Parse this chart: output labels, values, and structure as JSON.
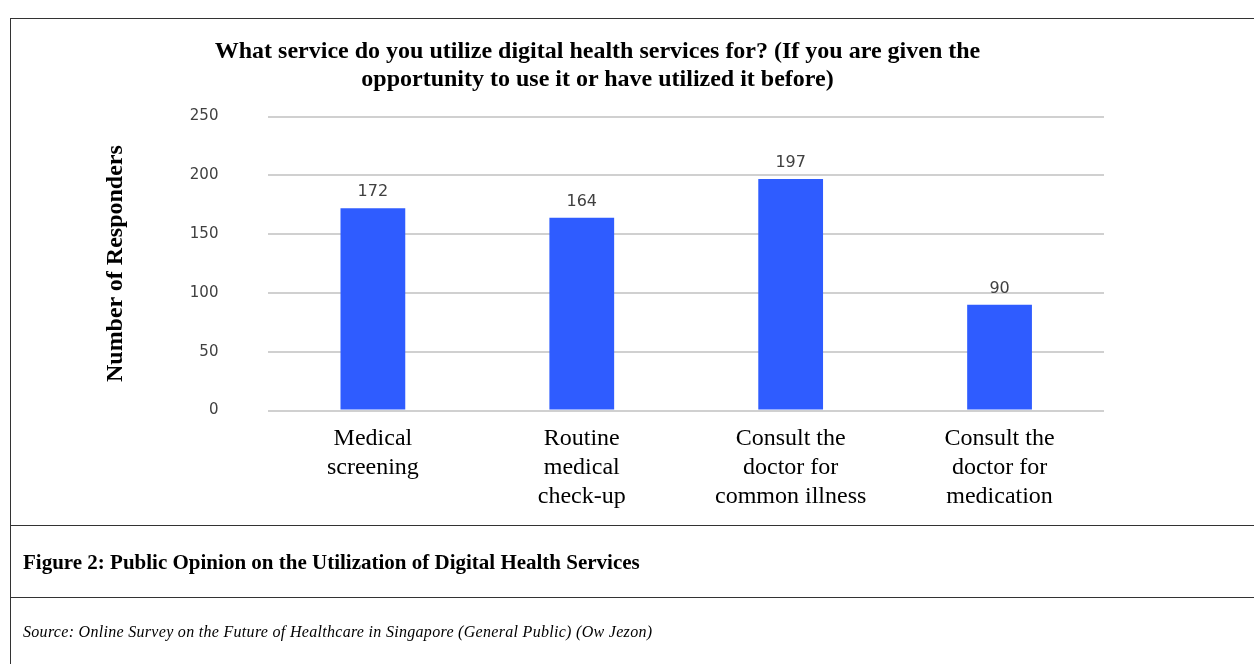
{
  "chart_data": {
    "type": "bar",
    "title": "What service do you utilize digital health services for? (If you are given the opportunity to use it or have utilized it before)",
    "ylabel": "Number of Responders",
    "categories": [
      "Medical screening",
      "Routine medical check-up",
      "Consult the doctor for common illness",
      "Consult the doctor for medication"
    ],
    "values": [
      172,
      164,
      197,
      90
    ],
    "color": "#2f5cff",
    "ylim": [
      0,
      250
    ],
    "yticks": [
      0,
      50,
      100,
      150,
      200,
      250
    ],
    "grid": "y",
    "data_labels": true,
    "legend": false,
    "annotations": [
      "Figure 2: Public Opinion on the Utilization of Digital Health Services",
      "Source: Online Survey on the Future of Healthcare in Singapore (General Public) (Ow Jezon)"
    ]
  }
}
